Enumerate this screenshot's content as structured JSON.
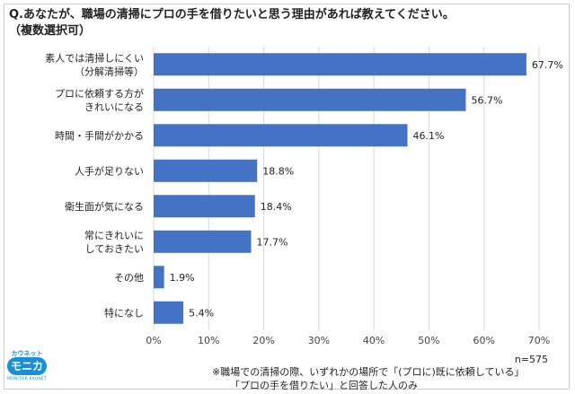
{
  "title_lines": [
    "Q.あなたが、職場の清掃にプロの手を借りたいと思う理由があれば教えてください。",
    "（複数選択可）"
  ],
  "chart_data": {
    "type": "bar",
    "orientation": "horizontal",
    "categories": [
      [
        "素人では清掃しにくい",
        "（分解清掃等）"
      ],
      [
        "プロに依頼する方が",
        "きれいになる"
      ],
      [
        "時間・手間がかかる"
      ],
      [
        "人手が足りない"
      ],
      [
        "衛生面が気になる"
      ],
      [
        "常にきれいに",
        "しておきたい"
      ],
      [
        "その他"
      ],
      [
        "特になし"
      ]
    ],
    "values": [
      67.7,
      56.7,
      46.1,
      18.8,
      18.4,
      17.7,
      1.9,
      5.4
    ],
    "value_labels": [
      "67.7%",
      "56.7%",
      "46.1%",
      "18.8%",
      "18.4%",
      "17.7%",
      "1.9%",
      "5.4%"
    ],
    "xlim": [
      0,
      70
    ],
    "xticks": [
      "0%",
      "10%",
      "20%",
      "30%",
      "40%",
      "50%",
      "60%",
      "70%"
    ],
    "grid": true,
    "bar_color": "#4472c4",
    "grid_color": "#d9d9d9"
  },
  "sample_size": "n=575",
  "footnote_lines": [
    "※職場での清掃の際、いずれかの場所で「(プロに)既に依頼している」",
    "「プロの手を借りたい」と回答した人のみ"
  ],
  "logo": {
    "top_text": "カウネット",
    "main_text": "モニカ",
    "bottom_text": "MONITOR KAUNET",
    "color": "#1a8fd6"
  }
}
